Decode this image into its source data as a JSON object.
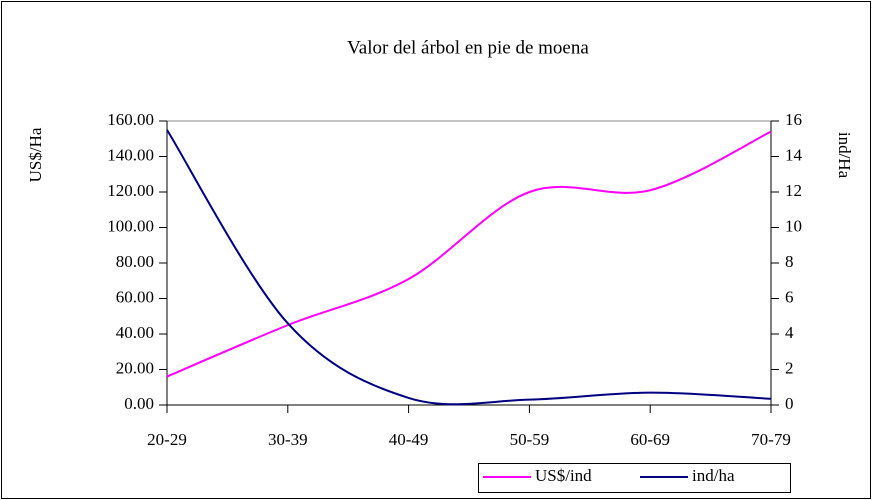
{
  "chart_data": {
    "type": "line",
    "title": "Valor del árbol en pie de moena",
    "y_label": "US$/Ha",
    "y2_label": "ind/Ha",
    "categories": [
      "20-29",
      "30-39",
      "40-49",
      "50-59",
      "60-69",
      "70-79"
    ],
    "series": [
      {
        "name": "US$/ind",
        "color": "#ff00ff",
        "values": [
          16,
          45,
          71,
          120,
          121,
          154
        ]
      },
      {
        "name": "ind/ha",
        "color": "#000080",
        "axis": "y2",
        "values": [
          15.5,
          4.6,
          0.4,
          0.3,
          0.7,
          0.35
        ]
      }
    ],
    "ylim": [
      0,
      160
    ],
    "yticks": [
      {
        "value": 0,
        "label": "0.00"
      },
      {
        "value": 20,
        "label": "20.00"
      },
      {
        "value": 40,
        "label": "40.00"
      },
      {
        "value": 60,
        "label": "60.00"
      },
      {
        "value": 80,
        "label": "80.00"
      },
      {
        "value": 100,
        "label": "100.00"
      },
      {
        "value": 120,
        "label": "120.00"
      },
      {
        "value": 140,
        "label": "140.00"
      },
      {
        "value": 160,
        "label": "160.00"
      }
    ],
    "y2lim": [
      0,
      16
    ],
    "y2ticks": [
      0,
      2,
      4,
      6,
      8,
      10,
      12,
      14,
      16
    ],
    "legend": "bottom-right"
  }
}
